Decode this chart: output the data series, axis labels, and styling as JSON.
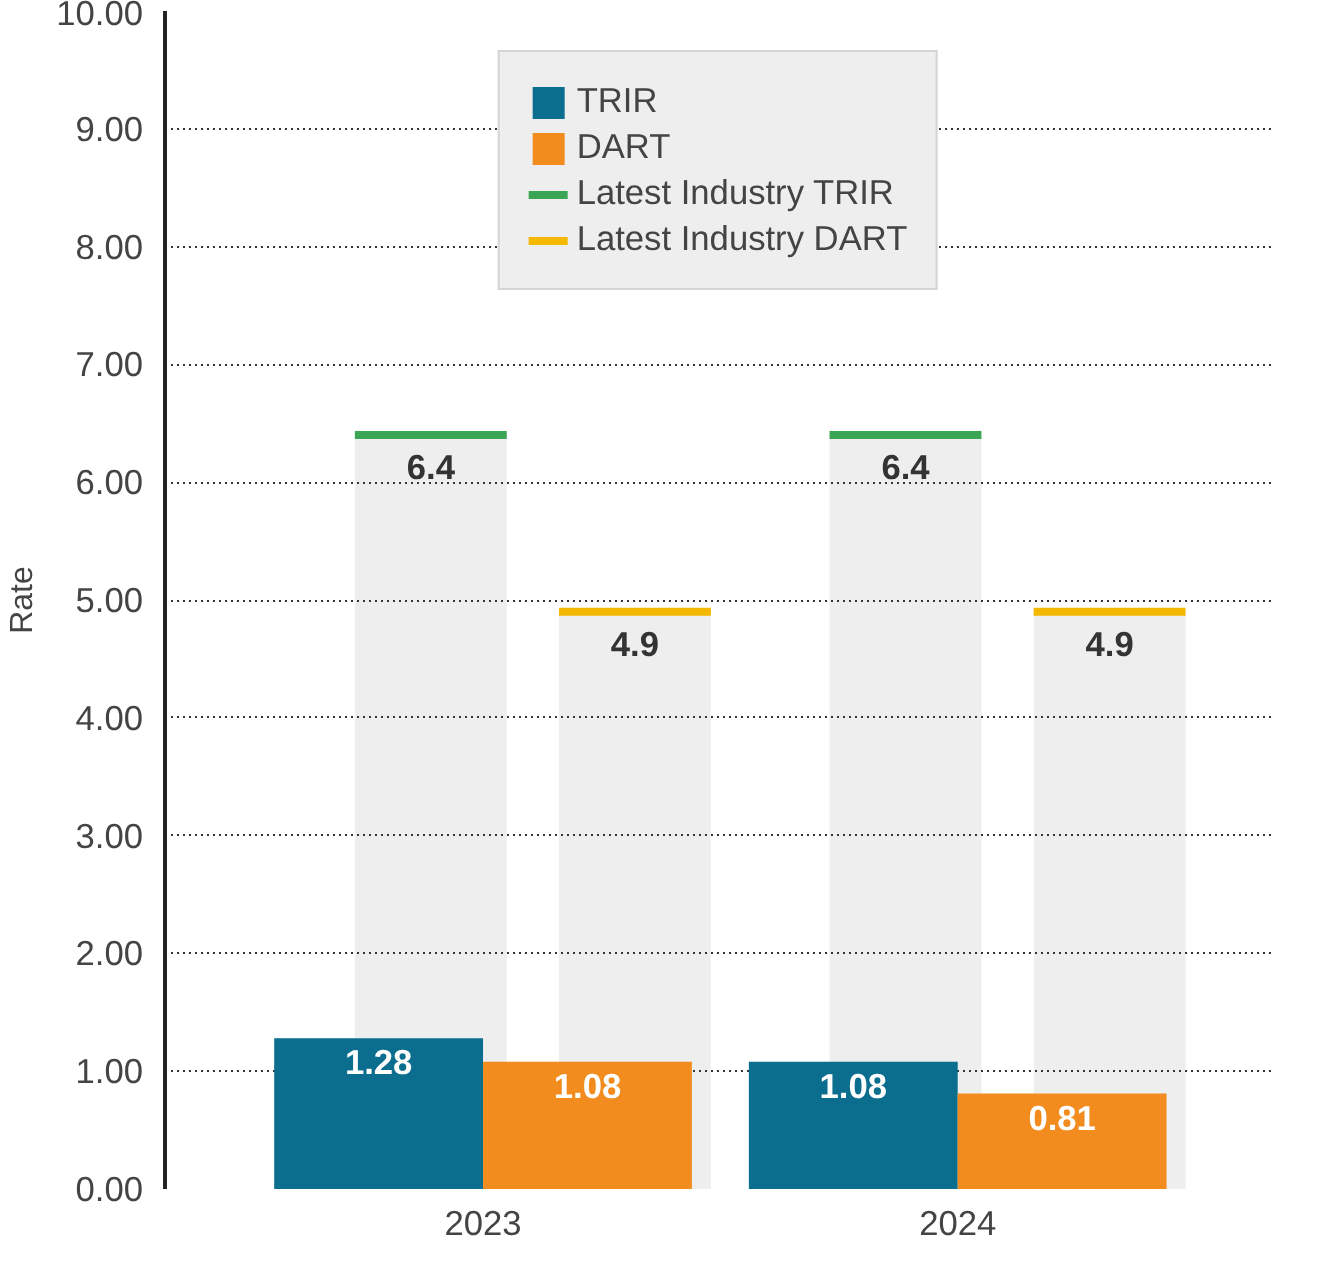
{
  "chart_data": {
    "type": "bar",
    "ylabel": "Rate",
    "series": [
      {
        "name": "TRIR",
        "color": "#0b6e8f",
        "x": [
          2022.78,
          2023.78
        ],
        "values": [
          1.28,
          1.08
        ],
        "value_labels": [
          "1.28",
          "1.08"
        ]
      },
      {
        "name": "DART",
        "color": "#f28c1e",
        "x": [
          2023.22,
          2024.22
        ],
        "values": [
          1.08,
          0.81
        ],
        "value_labels": [
          "1.08",
          "0.81"
        ]
      },
      {
        "color": "#eeeeee",
        "x": [
          2022.89,
          2023.89
        ],
        "values": [
          6.4,
          6.4
        ],
        "value_labels": [
          "6.4",
          "6.4"
        ]
      },
      {
        "color": "#eeeeee",
        "x": [
          2023.32,
          2024.32
        ],
        "values": [
          4.9,
          4.9
        ],
        "value_labels": [
          "4.9",
          "4.9"
        ]
      },
      {
        "name": "Latest Industry TRIR",
        "type": "line",
        "color": "#3aa655",
        "x": [
          2022.73,
          2023.05,
          2023.4,
          2023.73,
          2024.05
        ],
        "values": [
          6.4,
          6.4,
          null,
          6.4,
          6.4
        ]
      },
      {
        "name": "Latest Industry DART",
        "type": "line",
        "color": "#f5b800",
        "x": [
          2023.16,
          2023.48,
          2023.8,
          2024.16,
          2024.48
        ],
        "values": [
          4.9,
          4.9,
          null,
          4.9,
          4.9
        ]
      }
    ],
    "xlim": [
      2022.33,
      2024.66
    ],
    "xticks": [
      2023,
      2024
    ],
    "ylim": [
      0,
      10
    ],
    "yticks": [
      {
        "value": 0,
        "label": "0.00"
      },
      {
        "value": 1,
        "label": "1.00"
      },
      {
        "value": 2,
        "label": "2.00"
      },
      {
        "value": 3,
        "label": "3.00"
      },
      {
        "value": 4,
        "label": "4.00"
      },
      {
        "value": 5,
        "label": "5.00"
      },
      {
        "value": 6,
        "label": "6.00"
      },
      {
        "value": 7,
        "label": "7.00"
      },
      {
        "value": 8,
        "label": "8.00"
      },
      {
        "value": 9,
        "label": "9.00"
      },
      {
        "value": 10,
        "label": "10.00"
      }
    ],
    "grid": "y",
    "legend": "top"
  }
}
